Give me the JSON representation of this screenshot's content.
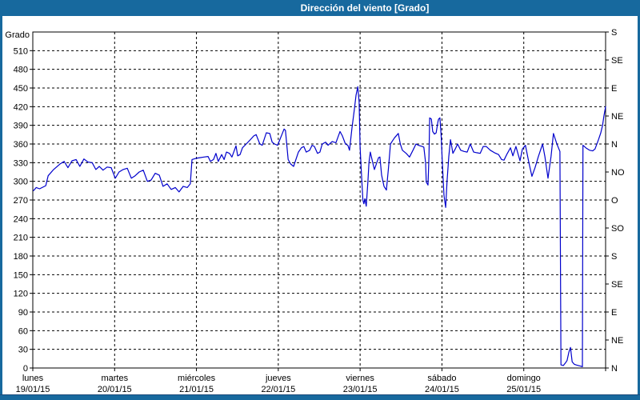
{
  "window": {
    "title": "Dirección del viento [Grado]"
  },
  "colors": {
    "titlebar": "#17699e",
    "window_border": "#17699e",
    "panel_bg": "#ffffff",
    "line": "#0000cc",
    "grid": "#000000",
    "text": "#000000"
  },
  "chart_data": {
    "type": "line",
    "title": "Dirección del viento [Grado]",
    "ylabel": "Grado",
    "grid": "dashed",
    "legend": "none",
    "y_left": {
      "min": 0,
      "max": 540,
      "tick_step": 30,
      "labeled_max": 510
    },
    "y_right_step_degrees": 45,
    "y_right_labels_bottom_to_top": [
      "N",
      "NE",
      "E",
      "SE",
      "S",
      "SO",
      "O",
      "NO",
      "N",
      "NE",
      "E",
      "SE",
      "S"
    ],
    "x_range_hours": [
      0,
      168
    ],
    "x_days": [
      {
        "name": "lunes",
        "date": "19/01/15"
      },
      {
        "name": "martes",
        "date": "20/01/15"
      },
      {
        "name": "miércoles",
        "date": "21/01/15"
      },
      {
        "name": "jueves",
        "date": "22/01/15"
      },
      {
        "name": "viernes",
        "date": "23/01/15"
      },
      {
        "name": "sábado",
        "date": "24/01/15"
      },
      {
        "name": "domingo",
        "date": "25/01/15"
      }
    ],
    "series": [
      {
        "name": "Dirección del viento",
        "unit": "Grado",
        "color": "#0000cc",
        "points": [
          [
            0.2,
            285
          ],
          [
            1,
            290
          ],
          [
            2,
            288
          ],
          [
            3.8,
            293
          ],
          [
            4.5,
            309
          ],
          [
            6.1,
            319
          ],
          [
            8,
            328
          ],
          [
            9.2,
            332
          ],
          [
            10.3,
            322
          ],
          [
            11.5,
            333
          ],
          [
            12.7,
            335
          ],
          [
            13.8,
            324
          ],
          [
            15,
            336
          ],
          [
            16.2,
            331
          ],
          [
            17.4,
            330
          ],
          [
            18.5,
            319
          ],
          [
            19.5,
            324
          ],
          [
            20.6,
            318
          ],
          [
            21.8,
            323
          ],
          [
            23,
            322
          ],
          [
            24.2,
            305
          ],
          [
            25.3,
            315
          ],
          [
            26.5,
            319
          ],
          [
            27.7,
            321
          ],
          [
            28.9,
            305
          ],
          [
            30,
            309
          ],
          [
            31.2,
            315
          ],
          [
            32.4,
            318
          ],
          [
            33.6,
            300
          ],
          [
            34.7,
            302
          ],
          [
            35.9,
            313
          ],
          [
            37.1,
            310
          ],
          [
            38.2,
            292
          ],
          [
            39.4,
            296
          ],
          [
            40.6,
            287
          ],
          [
            41.8,
            290
          ],
          [
            42.9,
            283
          ],
          [
            44.1,
            292
          ],
          [
            45.3,
            290
          ],
          [
            46.2,
            296
          ],
          [
            46.7,
            335
          ],
          [
            47.9,
            337
          ],
          [
            49,
            338
          ],
          [
            50.2,
            339
          ],
          [
            51.4,
            340
          ],
          [
            52.1,
            332
          ],
          [
            53,
            335
          ],
          [
            53.7,
            345
          ],
          [
            54.4,
            332
          ],
          [
            55.4,
            343
          ],
          [
            56.1,
            335
          ],
          [
            56.8,
            347
          ],
          [
            57.7,
            345
          ],
          [
            58.4,
            339
          ],
          [
            59.6,
            357
          ],
          [
            60.1,
            341
          ],
          [
            60.8,
            343
          ],
          [
            61.5,
            354
          ],
          [
            62.6,
            360
          ],
          [
            63.8,
            367
          ],
          [
            64.8,
            373
          ],
          [
            65.5,
            375
          ],
          [
            66.6,
            360
          ],
          [
            67.3,
            358
          ],
          [
            68.5,
            378
          ],
          [
            69.5,
            377
          ],
          [
            70.2,
            363
          ],
          [
            70.9,
            360
          ],
          [
            71.8,
            358
          ],
          [
            73.7,
            384
          ],
          [
            74.1,
            382
          ],
          [
            74.9,
            335
          ],
          [
            75.6,
            328
          ],
          [
            76.5,
            324
          ],
          [
            77.9,
            347
          ],
          [
            78.8,
            354
          ],
          [
            79.5,
            356
          ],
          [
            80.2,
            347
          ],
          [
            81.2,
            350
          ],
          [
            81.9,
            358
          ],
          [
            82.6,
            356
          ],
          [
            83.5,
            345
          ],
          [
            84.2,
            347
          ],
          [
            84.9,
            360
          ],
          [
            85.9,
            363
          ],
          [
            86.6,
            358
          ],
          [
            87.8,
            364
          ],
          [
            88.9,
            362
          ],
          [
            90.1,
            380
          ],
          [
            90.8,
            373
          ],
          [
            91.7,
            360
          ],
          [
            92.4,
            358
          ],
          [
            92.9,
            350
          ],
          [
            93.6,
            385
          ],
          [
            94.3,
            415
          ],
          [
            94.8,
            438
          ],
          [
            95.3,
            452
          ],
          [
            95.7,
            428
          ],
          [
            96,
            356
          ],
          [
            96.3,
            322
          ],
          [
            96.8,
            270
          ],
          [
            97.1,
            264
          ],
          [
            97.4,
            272
          ],
          [
            97.8,
            260
          ],
          [
            98.3,
            300
          ],
          [
            98.6,
            330
          ],
          [
            99,
            347
          ],
          [
            99.7,
            330
          ],
          [
            100.2,
            319
          ],
          [
            100.9,
            330
          ],
          [
            101.4,
            338
          ],
          [
            101.8,
            339
          ],
          [
            102.3,
            310
          ],
          [
            103,
            292
          ],
          [
            103.7,
            286
          ],
          [
            104.3,
            320
          ],
          [
            104.9,
            360
          ],
          [
            105.5,
            365
          ],
          [
            106.1,
            370
          ],
          [
            107.2,
            377
          ],
          [
            107.8,
            360
          ],
          [
            108.4,
            350
          ],
          [
            109.5,
            345
          ],
          [
            110.5,
            339
          ],
          [
            111.5,
            350
          ],
          [
            112.4,
            360
          ],
          [
            113.1,
            358
          ],
          [
            113.6,
            357
          ],
          [
            114.2,
            356
          ],
          [
            114.7,
            355
          ],
          [
            115.2,
            330
          ],
          [
            115.4,
            299
          ],
          [
            115.9,
            294
          ],
          [
            116.2,
            340
          ],
          [
            116.4,
            402
          ],
          [
            116.9,
            400
          ],
          [
            117.3,
            380
          ],
          [
            117.8,
            376
          ],
          [
            118.3,
            378
          ],
          [
            118.8,
            395
          ],
          [
            119,
            400
          ],
          [
            119.4,
            402
          ],
          [
            119.8,
            370
          ],
          [
            120.1,
            330
          ],
          [
            120.4,
            300
          ],
          [
            120.6,
            277
          ],
          [
            121.1,
            258
          ],
          [
            121.5,
            300
          ],
          [
            122,
            340
          ],
          [
            122.5,
            367
          ],
          [
            122.9,
            355
          ],
          [
            123.2,
            345
          ],
          [
            123.9,
            352
          ],
          [
            124.6,
            360
          ],
          [
            125.5,
            350
          ],
          [
            126.5,
            348
          ],
          [
            127.4,
            347
          ],
          [
            128.3,
            360
          ],
          [
            129.3,
            347
          ],
          [
            130.2,
            346
          ],
          [
            131.2,
            345
          ],
          [
            132.1,
            356
          ],
          [
            133,
            356
          ],
          [
            134.2,
            350
          ],
          [
            135.4,
            346
          ],
          [
            136.6,
            343
          ],
          [
            137.5,
            335
          ],
          [
            138.2,
            334
          ],
          [
            139.1,
            344
          ],
          [
            140.1,
            354
          ],
          [
            140.8,
            341
          ],
          [
            141.7,
            356
          ],
          [
            142.9,
            333
          ],
          [
            143.6,
            352
          ],
          [
            144.5,
            358
          ],
          [
            145.5,
            330
          ],
          [
            146.4,
            308
          ],
          [
            147.3,
            322
          ],
          [
            148.3,
            340
          ],
          [
            149.5,
            360
          ],
          [
            150.2,
            340
          ],
          [
            151.1,
            305
          ],
          [
            152,
            340
          ],
          [
            152.7,
            377
          ],
          [
            153.7,
            360
          ],
          [
            154.6,
            348
          ],
          [
            154.9,
            5
          ],
          [
            155.6,
            4
          ],
          [
            156.2,
            8
          ],
          [
            156.7,
            12
          ],
          [
            157.2,
            25
          ],
          [
            157.7,
            33
          ],
          [
            158.2,
            10
          ],
          [
            158.8,
            6
          ],
          [
            159.3,
            5
          ],
          [
            160,
            4
          ],
          [
            160.7,
            3
          ],
          [
            161.2,
            2
          ],
          [
            161.35,
            358
          ],
          [
            162.4,
            353
          ],
          [
            163.3,
            350
          ],
          [
            164.2,
            349
          ],
          [
            164.9,
            352
          ],
          [
            165.9,
            367
          ],
          [
            166.6,
            378
          ],
          [
            167.1,
            390
          ],
          [
            167.5,
            405
          ],
          [
            168,
            420
          ]
        ]
      }
    ]
  }
}
